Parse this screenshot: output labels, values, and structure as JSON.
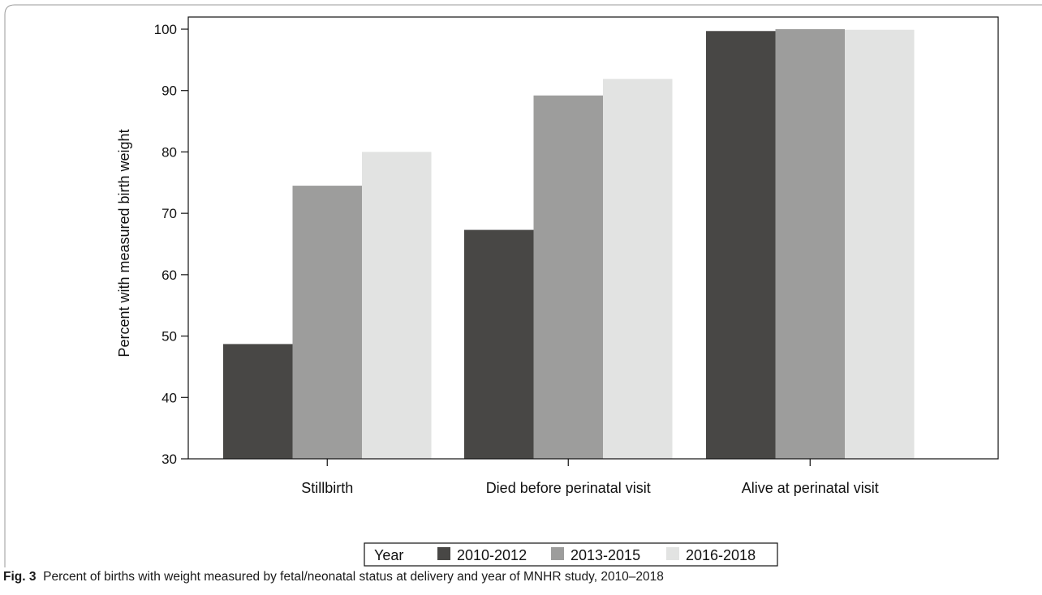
{
  "caption": {
    "label": "Fig. 3",
    "text": "Percent of births with weight measured by fetal/neonatal status at delivery and year of MNHR study, 2010–2018"
  },
  "chart_data": {
    "type": "bar",
    "categories": [
      "Stillbirth",
      "Died before perinatal visit",
      "Alive at perinatal visit"
    ],
    "series": [
      {
        "name": "2010-2012",
        "color": "#484745",
        "values": [
          48.7,
          67.3,
          99.7
        ]
      },
      {
        "name": "2013-2015",
        "color": "#9d9d9c",
        "values": [
          74.5,
          89.2,
          100.0
        ]
      },
      {
        "name": "2016-2018",
        "color": "#e2e3e2",
        "values": [
          80.0,
          91.9,
          99.9
        ]
      }
    ],
    "xlabel": "",
    "ylabel": "Percent with measured birth weight",
    "ylim": [
      30,
      100
    ],
    "yticks": [
      30,
      40,
      50,
      60,
      70,
      80,
      90,
      100
    ],
    "grid": false,
    "legend": {
      "title": "Year",
      "placement": "bottom"
    }
  }
}
